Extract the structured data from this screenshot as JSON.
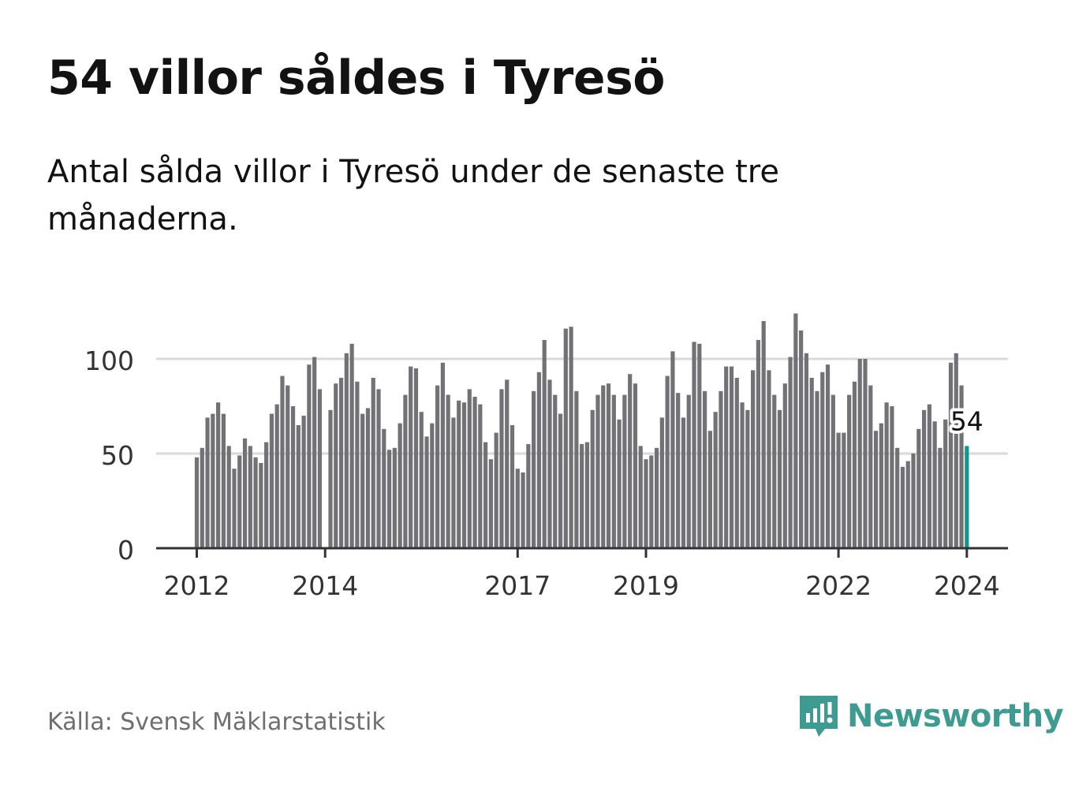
{
  "title": "54 villor såldes i Tyresö",
  "subtitle": "Antal sålda villor i Tyresö under de senaste tre månaderna.",
  "source": "Källa: Svensk Mäklarstatistik",
  "brand": {
    "name": "Newsworthy",
    "icon": "newsworthy-logo-icon",
    "color": "#3e9b91"
  },
  "colors": {
    "bar": "#727176",
    "highlight": "#13968d",
    "grid": "#d9d9d9",
    "axis": "#333333"
  },
  "chart_data": {
    "type": "bar",
    "title": "54 villor såldes i Tyresö",
    "subtitle": "Antal sålda villor i Tyresö under de senaste tre månaderna.",
    "xlabel": "",
    "ylabel": "",
    "ylim": [
      0,
      125
    ],
    "yticks": [
      0,
      50,
      100
    ],
    "xtick_labels": [
      "2012",
      "2014",
      "2017",
      "2019",
      "2022",
      "2024"
    ],
    "grid": "horizontal",
    "start_month": "2012-01",
    "end_month": "2024-01",
    "highlight_label": "54",
    "values": [
      48,
      53,
      69,
      71,
      77,
      71,
      54,
      42,
      49,
      58,
      54,
      48,
      45,
      56,
      71,
      76,
      91,
      86,
      75,
      65,
      70,
      97,
      101,
      84,
      null,
      73,
      87,
      90,
      103,
      108,
      88,
      71,
      74,
      90,
      84,
      63,
      52,
      53,
      66,
      81,
      96,
      95,
      72,
      59,
      66,
      86,
      98,
      81,
      69,
      78,
      77,
      84,
      80,
      76,
      56,
      47,
      61,
      84,
      89,
      65,
      42,
      40,
      55,
      83,
      93,
      110,
      89,
      81,
      71,
      116,
      117,
      83,
      55,
      56,
      73,
      81,
      86,
      87,
      81,
      68,
      81,
      92,
      87,
      54,
      47,
      49,
      53,
      69,
      91,
      104,
      82,
      69,
      81,
      109,
      108,
      83,
      62,
      72,
      83,
      96,
      96,
      90,
      77,
      73,
      94,
      110,
      120,
      94,
      81,
      73,
      87,
      101,
      124,
      115,
      103,
      90,
      83,
      93,
      97,
      81,
      61,
      61,
      81,
      88,
      100,
      100,
      86,
      62,
      66,
      77,
      75,
      53,
      43,
      46,
      50,
      63,
      73,
      76,
      67,
      53,
      68,
      98,
      103,
      86,
      54
    ]
  }
}
